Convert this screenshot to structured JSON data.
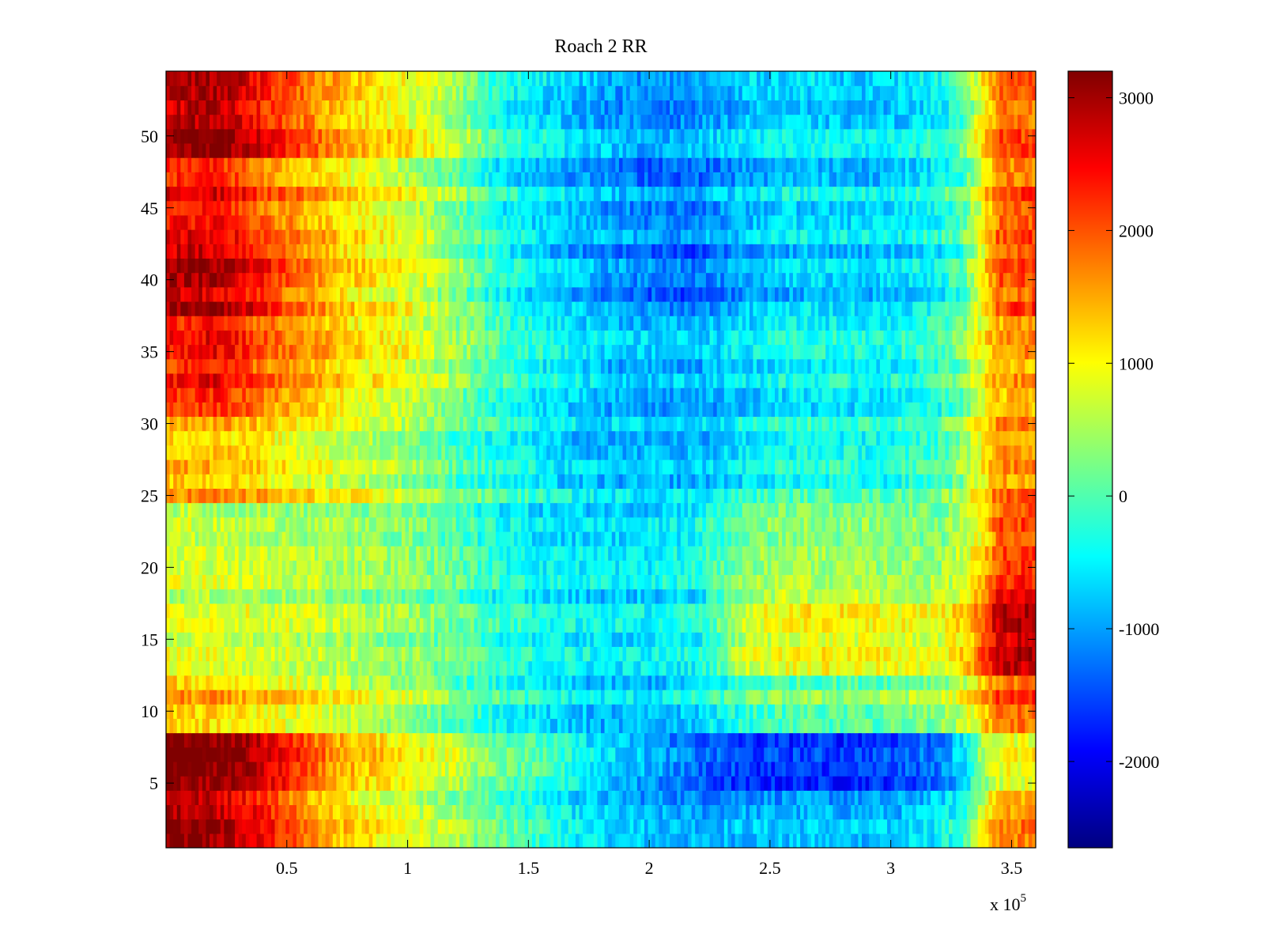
{
  "chart_data": {
    "type": "heatmap",
    "title": "Roach 2 RR",
    "xlabel": "",
    "ylabel": "",
    "x_exponent_label": "x 10",
    "x_exponent_power": "5",
    "xlim": [
      0,
      3.6
    ],
    "ylim": [
      0.5,
      54.5
    ],
    "x_ticks": [
      0.5,
      1,
      1.5,
      2,
      2.5,
      3,
      3.5
    ],
    "x_tick_labels": [
      "0.5",
      "1",
      "1.5",
      "2",
      "2.5",
      "3",
      "3.5"
    ],
    "y_ticks": [
      5,
      10,
      15,
      20,
      25,
      30,
      35,
      40,
      45,
      50
    ],
    "y_tick_labels": [
      "5",
      "10",
      "15",
      "20",
      "25",
      "30",
      "35",
      "40",
      "45",
      "50"
    ],
    "rows": 54,
    "colormap": "jet",
    "colorbar": {
      "clim": [
        -2650,
        3200
      ],
      "ticks": [
        3000,
        2000,
        1000,
        0,
        -1000,
        -2000
      ],
      "tick_labels": [
        "3000",
        "2000",
        "1000",
        "0",
        "-1000",
        "-2000"
      ]
    },
    "profile_x": [
      0,
      0.1,
      0.2,
      0.3,
      0.4,
      0.5,
      0.6,
      0.7,
      0.8,
      1.0,
      1.2,
      1.4,
      1.6,
      1.8,
      2.0,
      2.2,
      2.4,
      2.6,
      2.8,
      3.0,
      3.2,
      3.3,
      3.38,
      3.45,
      3.6
    ],
    "row_profiles": [
      {
        "rows": [
          1,
          4
        ],
        "values": [
          3000,
          3000,
          2900,
          2700,
          2400,
          2000,
          1600,
          1300,
          1100,
          800,
          400,
          0,
          -400,
          -700,
          -900,
          -1000,
          -900,
          -900,
          -900,
          -900,
          -600,
          -200,
          800,
          1600,
          1700
        ]
      },
      {
        "rows": [
          5,
          8
        ],
        "values": [
          3200,
          3200,
          3100,
          3000,
          2700,
          2400,
          1900,
          1500,
          1300,
          1000,
          600,
          100,
          -200,
          -700,
          -1000,
          -1400,
          -1700,
          -1700,
          -1700,
          -1600,
          -1300,
          -700,
          400,
          800,
          900
        ]
      },
      {
        "rows": [
          9,
          12
        ],
        "values": [
          1500,
          1400,
          1400,
          1300,
          1200,
          1100,
          1000,
          900,
          800,
          600,
          200,
          -200,
          -500,
          -700,
          -700,
          -500,
          0,
          200,
          200,
          300,
          500,
          800,
          1400,
          2000,
          2000
        ]
      },
      {
        "rows": [
          13,
          18
        ],
        "values": [
          700,
          700,
          700,
          700,
          600,
          600,
          500,
          500,
          400,
          300,
          0,
          -300,
          -500,
          -600,
          -600,
          -500,
          600,
          900,
          900,
          800,
          800,
          1100,
          1800,
          2700,
          2800
        ]
      },
      {
        "rows": [
          19,
          24
        ],
        "values": [
          800,
          800,
          700,
          700,
          700,
          600,
          600,
          500,
          500,
          400,
          100,
          -300,
          -500,
          -500,
          -500,
          -300,
          300,
          500,
          400,
          400,
          400,
          700,
          1200,
          2100,
          2200
        ]
      },
      {
        "rows": [
          25,
          30
        ],
        "values": [
          1500,
          1500,
          1500,
          1400,
          1300,
          1100,
          1000,
          900,
          800,
          500,
          100,
          -200,
          -500,
          -700,
          -700,
          -700,
          -400,
          -200,
          -200,
          -200,
          100,
          500,
          1200,
          1700,
          1700
        ]
      },
      {
        "rows": [
          31,
          37
        ],
        "values": [
          2200,
          2300,
          2400,
          2200,
          1800,
          1600,
          1400,
          1200,
          1000,
          800,
          300,
          -200,
          -500,
          -800,
          -900,
          -900,
          -700,
          -500,
          -500,
          -500,
          -200,
          200,
          900,
          1400,
          1500
        ]
      },
      {
        "rows": [
          38,
          42
        ],
        "values": [
          2900,
          3000,
          2900,
          2700,
          2400,
          2000,
          1700,
          1400,
          1200,
          900,
          400,
          -300,
          -700,
          -1000,
          -1200,
          -1300,
          -900,
          -700,
          -700,
          -700,
          -400,
          0,
          1000,
          2000,
          2100
        ]
      },
      {
        "rows": [
          43,
          48
        ],
        "values": [
          2400,
          2500,
          2500,
          2300,
          1900,
          1700,
          1500,
          1300,
          1100,
          800,
          300,
          -400,
          -700,
          -900,
          -1100,
          -1100,
          -800,
          -600,
          -600,
          -600,
          -300,
          100,
          1000,
          1900,
          2000
        ]
      },
      {
        "rows": [
          49,
          54
        ],
        "values": [
          2800,
          3000,
          3000,
          2800,
          2400,
          2100,
          1800,
          1500,
          1300,
          1000,
          500,
          -300,
          -600,
          -900,
          -1100,
          -1000,
          -700,
          -600,
          -700,
          -700,
          -400,
          0,
          1100,
          1900,
          1900
        ]
      }
    ]
  }
}
